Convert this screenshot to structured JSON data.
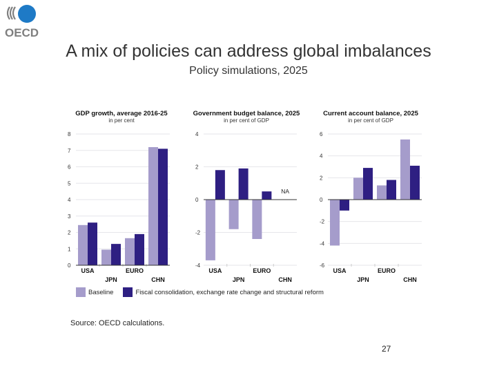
{
  "slide": {
    "logo_text": "OECD",
    "title": "A mix of policies can address global imbalances",
    "subtitle": "Policy simulations, 2025",
    "source": "Source: OECD calculations.",
    "page_number": "27"
  },
  "colors": {
    "baseline": "#a59ccb",
    "policy": "#2e1f82",
    "logo_blue": "#1e7ac6",
    "logo_grey": "#7f7f7f"
  },
  "legend": [
    "Baseline",
    "Fiscal consolidation, exchange rate change and structural reform"
  ],
  "chart_data": [
    {
      "type": "bar",
      "title": "GDP growth, average 2016-25",
      "subtitle": "in per cent",
      "categories": [
        "USA",
        "JPN",
        "EURO",
        "CHN"
      ],
      "ylim": [
        0,
        8
      ],
      "yticks": [
        0,
        1,
        2,
        3,
        4,
        5,
        6,
        7,
        8
      ],
      "grid": true,
      "series": [
        {
          "name": "Baseline",
          "values": [
            2.45,
            0.95,
            1.65,
            7.2
          ]
        },
        {
          "name": "Fiscal consolidation, exchange rate change and structural reform",
          "values": [
            2.6,
            1.3,
            1.9,
            7.1
          ]
        }
      ]
    },
    {
      "type": "bar",
      "title": "Government budget balance, 2025",
      "subtitle": "in per cent of GDP",
      "categories": [
        "USA",
        "JPN",
        "EURO",
        "CHN"
      ],
      "ylim": [
        -4,
        4
      ],
      "yticks": [
        -4,
        -2,
        0,
        2,
        4
      ],
      "grid": true,
      "annotation": "NA",
      "series": [
        {
          "name": "Baseline",
          "values": [
            -3.7,
            -1.8,
            -2.4,
            null
          ]
        },
        {
          "name": "Fiscal consolidation, exchange rate change and structural reform",
          "values": [
            1.8,
            1.9,
            0.5,
            null
          ]
        }
      ]
    },
    {
      "type": "bar",
      "title": "Current account balance, 2025",
      "subtitle": "in per cent of GDP",
      "categories": [
        "USA",
        "JPN",
        "EURO",
        "CHN"
      ],
      "ylim": [
        -6,
        6
      ],
      "yticks": [
        -6,
        -4,
        -2,
        0,
        2,
        4,
        6
      ],
      "grid": true,
      "series": [
        {
          "name": "Baseline",
          "values": [
            -4.2,
            2.0,
            1.3,
            5.5
          ]
        },
        {
          "name": "Fiscal consolidation, exchange rate change and structural reform",
          "values": [
            -1.0,
            2.9,
            1.8,
            3.1
          ]
        }
      ]
    }
  ]
}
